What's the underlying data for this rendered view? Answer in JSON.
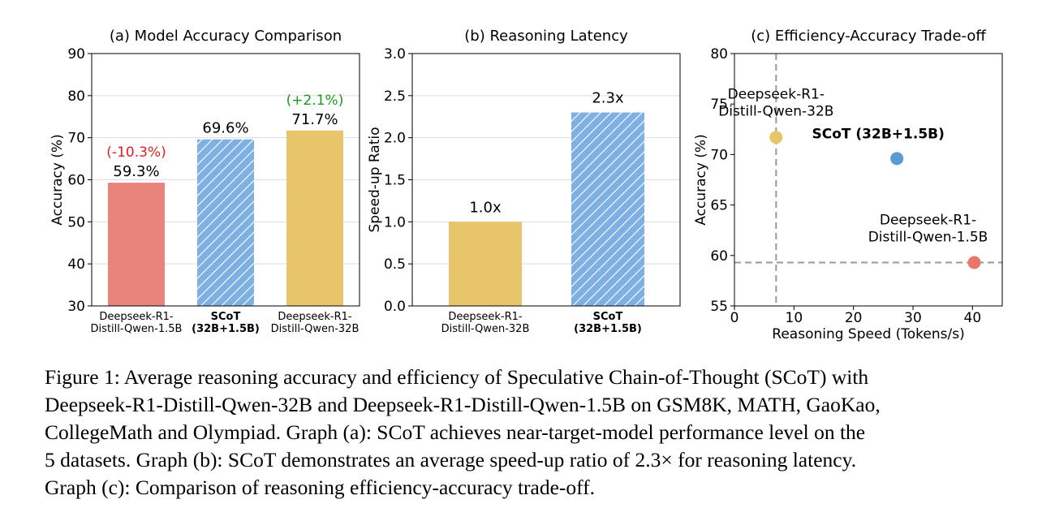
{
  "chart_data": [
    {
      "type": "bar",
      "title": "(a) Model Accuracy Comparison",
      "ylabel": "Accuracy (%)",
      "ylim": [
        30,
        90
      ],
      "yticks": [
        "30",
        "40",
        "50",
        "60",
        "70",
        "80",
        "90"
      ],
      "categories": [
        [
          "Deepseek-R1-",
          "Distill-Qwen-1.5B"
        ],
        [
          "SCoT",
          "(32B+1.5B)"
        ],
        [
          "Deepseek-R1-",
          "Distill-Qwen-32B"
        ]
      ],
      "values": [
        59.3,
        69.6,
        71.7
      ],
      "value_labels": [
        "59.3%",
        "69.6%",
        "71.7%"
      ],
      "delta_labels": [
        "(-10.3%)",
        "",
        "(+2.1%)"
      ],
      "colors": [
        "#e8847c",
        "#7fb0e3",
        "#e8c46a"
      ],
      "delta_colors": [
        "#e02020",
        "",
        "#1a9a1a"
      ],
      "hatched": [
        false,
        true,
        false
      ],
      "bold_category": [
        false,
        true,
        false
      ]
    },
    {
      "type": "bar",
      "title": "(b) Reasoning Latency",
      "ylabel": "Speed-up Ratio",
      "ylim": [
        0.0,
        3.0
      ],
      "yticks": [
        "0.0",
        "0.5",
        "1.0",
        "1.5",
        "2.0",
        "2.5",
        "3.0"
      ],
      "categories": [
        [
          "Deepseek-R1-",
          "Distill-Qwen-32B"
        ],
        [
          "SCoT",
          "(32B+1.5B)"
        ]
      ],
      "values": [
        1.0,
        2.3
      ],
      "value_labels": [
        "1.0x",
        "2.3x"
      ],
      "colors": [
        "#e8c46a",
        "#7fb0e3"
      ],
      "hatched": [
        false,
        true
      ],
      "bold_category": [
        false,
        true
      ]
    },
    {
      "type": "scatter",
      "title": "(c) Efficiency-Accuracy Trade-off",
      "xlabel": "Reasoning Speed (Tokens/s)",
      "ylabel": "Accuracy (%)",
      "xlim": [
        0,
        45
      ],
      "ylim": [
        55,
        80
      ],
      "xticks": [
        "0",
        "10",
        "20",
        "30",
        "40"
      ],
      "yticks": [
        "55",
        "60",
        "65",
        "70",
        "75",
        "80"
      ],
      "points": [
        {
          "x": 7,
          "y": 71.7,
          "color": "#e8c46a",
          "label": [
            "Deepseek-R1-",
            "Distill-Qwen-32B"
          ],
          "bold": false
        },
        {
          "x": 27.3,
          "y": 69.6,
          "color": "#5b9bd5",
          "label": [
            "SCoT (32B+1.5B)"
          ],
          "bold": true
        },
        {
          "x": 40.3,
          "y": 59.3,
          "color": "#e8776c",
          "label": [
            "Deepseek-R1-",
            "Distill-Qwen-1.5B"
          ],
          "bold": false
        }
      ],
      "reference_lines": {
        "x": 7,
        "y": 59.3
      }
    }
  ],
  "caption": [
    "Figure 1:  Average reasoning accuracy and efficiency of Speculative Chain-of-Thought (SCoT) with",
    "Deepseek-R1-Distill-Qwen-32B and Deepseek-R1-Distill-Qwen-1.5B on GSM8K, MATH, GaoKao,",
    "CollegeMath and Olympiad. Graph (a): SCoT achieves near-target-model performance level on the",
    "5 datasets. Graph (b): SCoT demonstrates an average speed-up ratio of 2.3× for reasoning latency.",
    "Graph (c): Comparison of reasoning efficiency-accuracy trade-off."
  ]
}
